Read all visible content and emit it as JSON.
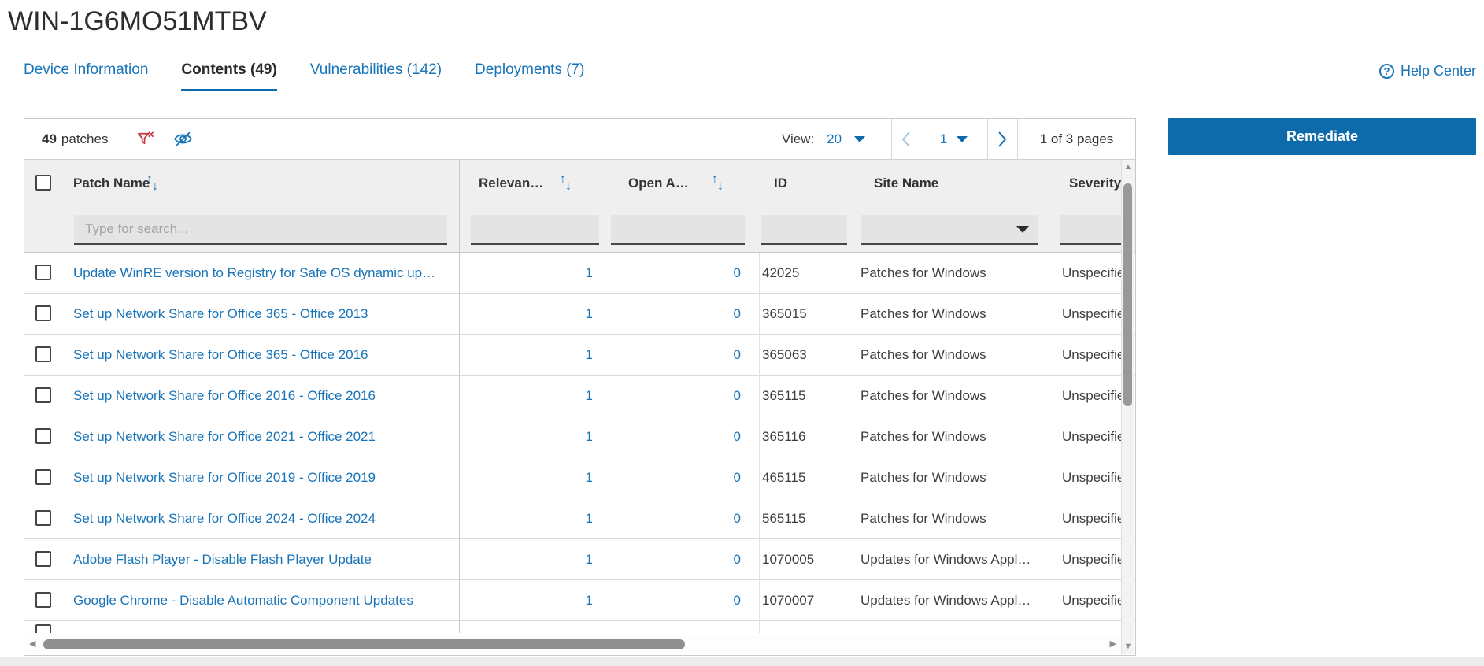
{
  "page": {
    "title": "WIN-1G6MO51MTBV"
  },
  "header": {
    "help_label": "Help Center",
    "help_icon": "question-circle-icon"
  },
  "tabs": [
    {
      "label": "Device Information",
      "active": false
    },
    {
      "label": "Contents (49)",
      "active": true
    },
    {
      "label": "Vulnerabilities (142)",
      "active": false
    },
    {
      "label": "Deployments (7)",
      "active": false
    }
  ],
  "toolbar": {
    "count": "49",
    "count_label": "patches",
    "clear_filter_icon": "funnel-x-icon",
    "hide_columns_icon": "eye-off-icon",
    "view_label": "View:",
    "page_size": "20",
    "current_page": "1",
    "page_info": "1 of 3 pages"
  },
  "actions": {
    "remediate_label": "Remediate"
  },
  "table": {
    "search_placeholder": "Type for search...",
    "columns": [
      {
        "label": "Patch Name",
        "sortable": true
      },
      {
        "label": "Relevan…",
        "sortable": true
      },
      {
        "label": "Open A…",
        "sortable": true
      },
      {
        "label": "ID",
        "sortable": false
      },
      {
        "label": "Site Name",
        "sortable": false
      },
      {
        "label": "Severity",
        "sortable": false
      }
    ],
    "rows": [
      {
        "name": "Update WinRE version to Registry for Safe OS dynamic up…",
        "relevance": "1",
        "open_actions": "0",
        "id": "42025",
        "site": "Patches for Windows",
        "severity": "Unspecified"
      },
      {
        "name": "Set up Network Share for Office 365 - Office 2013",
        "relevance": "1",
        "open_actions": "0",
        "id": "365015",
        "site": "Patches for Windows",
        "severity": "Unspecified"
      },
      {
        "name": "Set up Network Share for Office 365 - Office 2016",
        "relevance": "1",
        "open_actions": "0",
        "id": "365063",
        "site": "Patches for Windows",
        "severity": "Unspecified"
      },
      {
        "name": "Set up Network Share for Office 2016 - Office 2016",
        "relevance": "1",
        "open_actions": "0",
        "id": "365115",
        "site": "Patches for Windows",
        "severity": "Unspecified"
      },
      {
        "name": "Set up Network Share for Office 2021 - Office 2021",
        "relevance": "1",
        "open_actions": "0",
        "id": "365116",
        "site": "Patches for Windows",
        "severity": "Unspecified"
      },
      {
        "name": "Set up Network Share for Office 2019 - Office 2019",
        "relevance": "1",
        "open_actions": "0",
        "id": "465115",
        "site": "Patches for Windows",
        "severity": "Unspecified"
      },
      {
        "name": "Set up Network Share for Office 2024 - Office 2024",
        "relevance": "1",
        "open_actions": "0",
        "id": "565115",
        "site": "Patches for Windows",
        "severity": "Unspecified"
      },
      {
        "name": "Adobe Flash Player - Disable Flash Player Update",
        "relevance": "1",
        "open_actions": "0",
        "id": "1070005",
        "site": "Updates for Windows Appl…",
        "severity": "Unspecified"
      },
      {
        "name": "Google Chrome - Disable Automatic Component Updates",
        "relevance": "1",
        "open_actions": "0",
        "id": "1070007",
        "site": "Updates for Windows Appl…",
        "severity": "Unspecified"
      }
    ]
  },
  "colors": {
    "accent_blue": "#0d6bac",
    "link_blue": "#1874b9",
    "filter_icon_red": "#c5333e",
    "header_gray": "#efefef"
  }
}
